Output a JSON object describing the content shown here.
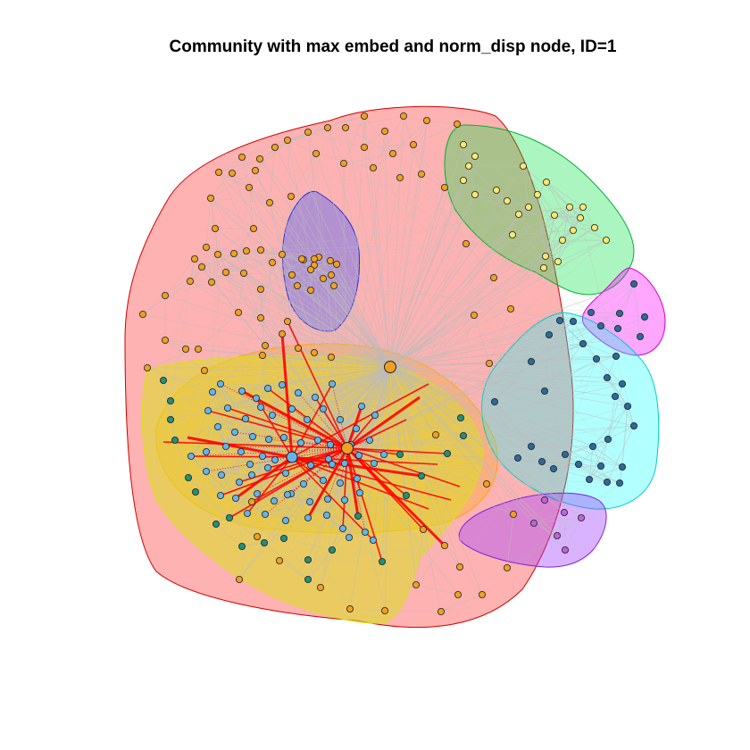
{
  "title": "Community with max embed and norm_disp node, ID=1",
  "colors": {
    "hull_main_fill": "#ff0000",
    "hull_main_stroke": "#d00000",
    "hull_blue_fill": "#4060ff",
    "hull_blue_stroke": "#2030d0",
    "hull_green_fill": "#00e040",
    "hull_green_stroke": "#00b030",
    "hull_magenta_fill": "#ff00ff",
    "hull_magenta_stroke": "#d000d0",
    "hull_cyan_fill": "#00ffff",
    "hull_cyan_stroke": "#00c8c8",
    "hull_orange_fill": "#ffa500",
    "hull_yellow_fill": "#d8e020",
    "hull_violet_fill": "#a040ff",
    "hull_violet_stroke": "#8020e0",
    "edge_gray": "#bcbcbc",
    "edge_red": "#ff0000",
    "node_orange": "#f0a020",
    "node_yellow": "#f8e870",
    "node_skyblue": "#64b4ec",
    "node_teal": "#20907a",
    "node_steelblue": "#2a6a9c",
    "node_violet": "#c060e0",
    "node_outline": "#222222"
  },
  "communities": [
    {
      "name": "main-community",
      "fill": "hull_main_fill",
      "stroke": "hull_main_stroke",
      "nodes": "orange"
    },
    {
      "name": "blue-community",
      "fill": "hull_blue_fill",
      "stroke": "hull_blue_stroke",
      "nodes": "orange"
    },
    {
      "name": "green-community",
      "fill": "hull_green_fill",
      "stroke": "hull_green_stroke",
      "nodes": "yellow"
    },
    {
      "name": "magenta-community",
      "fill": "hull_magenta_fill",
      "stroke": "hull_magenta_stroke",
      "nodes": "steelblue"
    },
    {
      "name": "cyan-community",
      "fill": "hull_cyan_fill",
      "stroke": "hull_cyan_stroke",
      "nodes": "steelblue"
    },
    {
      "name": "orange-community",
      "fill": "hull_orange_fill",
      "stroke": "hull_orange_fill",
      "nodes": "skyblue"
    },
    {
      "name": "yellow-community",
      "fill": "hull_yellow_fill",
      "stroke": "hull_yellow_fill",
      "nodes": "teal"
    },
    {
      "name": "violet-community",
      "fill": "hull_violet_fill",
      "stroke": "hull_violet_stroke",
      "nodes": "violet"
    }
  ]
}
